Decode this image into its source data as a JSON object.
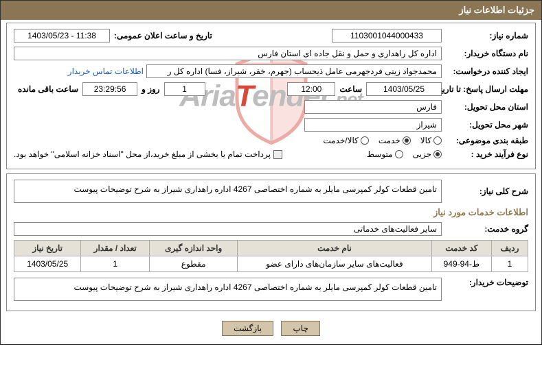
{
  "header": {
    "title": "جزئیات اطلاعات نیاز"
  },
  "row1": {
    "need_no_label": "شماره نیاز:",
    "need_no": "1103001044000433",
    "ann_label": "تاریخ و ساعت اعلان عمومی:",
    "ann_value": "1403/05/23 - 11:38"
  },
  "row2": {
    "buyer_label": "نام دستگاه خریدار:",
    "buyer": "اداره کل راهداری و حمل و نقل جاده ای استان فارس"
  },
  "row3": {
    "creator_label": "ایجاد کننده درخواست:",
    "creator": "محمدجواد زینی فردجهرمی عامل ذیحساب (جهرم، خفر، شیراز، فسا) اداره کل ر",
    "contact_link": "اطلاعات تماس خریدار"
  },
  "row4": {
    "deadline_label": "مهلت ارسال پاسخ: تا تاریخ:",
    "date": "1403/05/25",
    "time_label": "ساعت",
    "time": "12:00",
    "days": "1",
    "days_label": "روز و",
    "remaining": "23:29:56",
    "remaining_label": "ساعت باقی مانده"
  },
  "row5": {
    "province_label": "استان محل تحویل:",
    "province": "فارس"
  },
  "row6": {
    "city_label": "شهر محل تحویل:",
    "city": "شیراز"
  },
  "row7": {
    "class_label": "طبقه بندی موضوعی:",
    "opts": [
      "کالا",
      "خدمت",
      "کالا/خدمت"
    ],
    "selected": 1
  },
  "row8": {
    "type_label": "نوع فرآیند خرید :",
    "opts": [
      "جزیی",
      "متوسط"
    ],
    "selected": 0,
    "note": "پرداخت تمام یا بخشی از مبلغ خرید،از محل \"اسناد خزانه اسلامی\" خواهد بود."
  },
  "desc": {
    "label": "شرح کلی نیاز:",
    "text": "تامین قطعات کولر کمپرسی مایلر به شماره اختصاصی 4267 اداره راهداری شیراز به شرح توضیحات پیوست"
  },
  "svc": {
    "title": "اطلاعات خدمات مورد نیاز",
    "group_label": "گروه خدمت:",
    "group": "سایر فعالیت‌های خدماتی"
  },
  "table": {
    "headers": [
      "ردیف",
      "کد خدمت",
      "نام خدمت",
      "واحد اندازه گیری",
      "تعداد / مقدار",
      "تاریخ نیاز"
    ],
    "rows": [
      [
        "1",
        "ط-94-949",
        "فعالیت‌های سایر سازمان‌های دارای عضو",
        "مقطوع",
        "1",
        "1403/05/25"
      ]
    ]
  },
  "notes": {
    "label": "توضیحات خریدار:",
    "text": "تامین قطعات کولر کمپرسی مایلر به شماره اختصاصی 4267 اداره راهداری شیراز به شرح توضیحات پیوست"
  },
  "buttons": {
    "print": "چاپ",
    "back": "بازگشت"
  },
  "watermark": {
    "text_pre": "Aria",
    "text_red": "T",
    "text_post": "ender",
    "dot": ".net",
    "shield_stroke": "#d74a3a",
    "shield_fill": "none"
  }
}
